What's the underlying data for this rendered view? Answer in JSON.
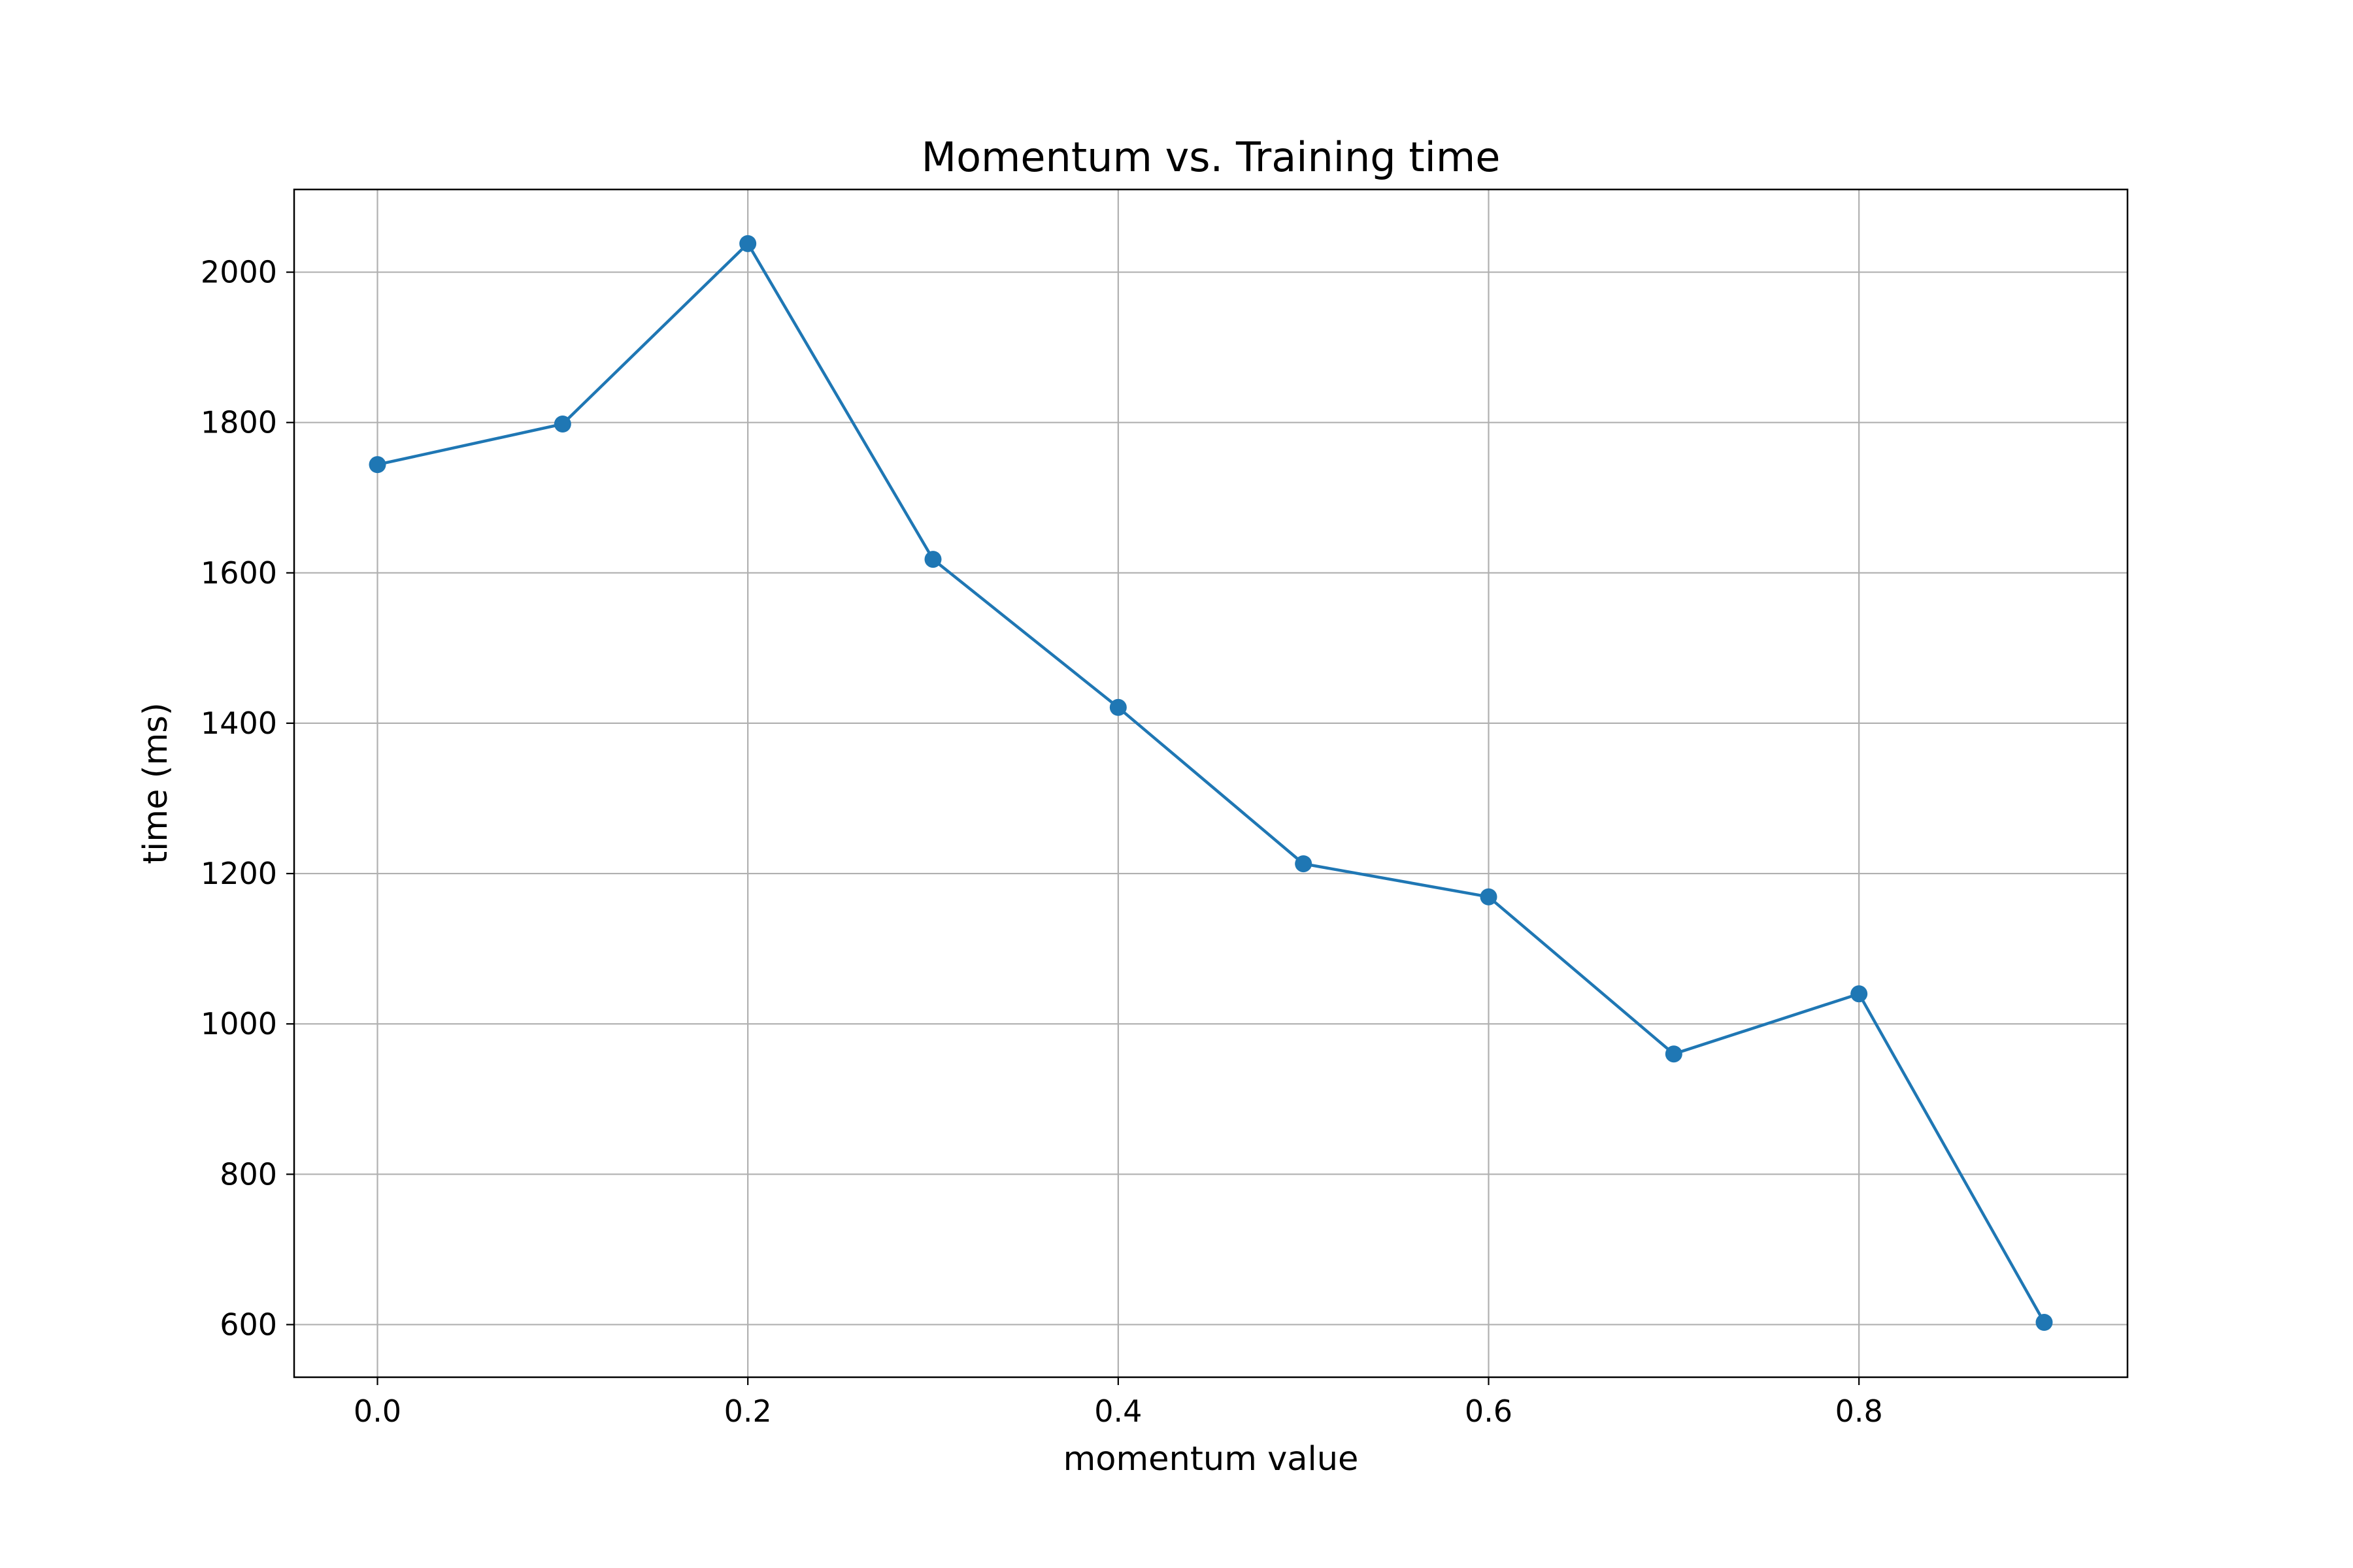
{
  "chart_data": {
    "type": "line",
    "title": "Momentum vs. Training time",
    "xlabel": "momentum value",
    "ylabel": "time (ms)",
    "x": [
      0.0,
      0.1,
      0.2,
      0.3,
      0.4,
      0.5,
      0.6,
      0.7,
      0.8,
      0.9
    ],
    "series": [
      {
        "values": [
          1744,
          1798,
          2038,
          1618,
          1421,
          1213,
          1169,
          960,
          1040,
          603
        ],
        "color": "#1f77b4",
        "marker": "circle"
      }
    ],
    "xlim": [
      -0.045,
      0.945
    ],
    "ylim": [
      530,
      2110
    ],
    "xticks": [
      "0.0",
      "0.2",
      "0.4",
      "0.6",
      "0.8"
    ],
    "yticks": [
      "600",
      "800",
      "1000",
      "1200",
      "1400",
      "1600",
      "1800",
      "2000"
    ],
    "grid": true,
    "grid_color": "#b0b0b0",
    "axes_color": "#000000"
  }
}
